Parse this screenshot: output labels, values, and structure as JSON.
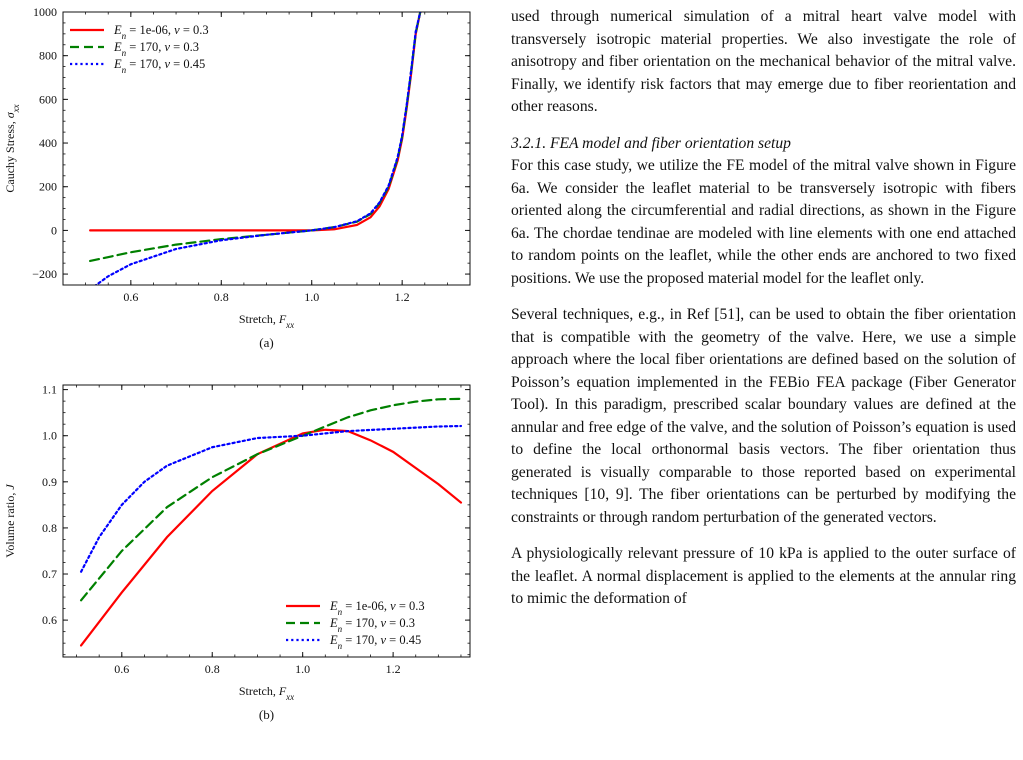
{
  "colors": {
    "series_red": "#ff0000",
    "series_green": "#008000",
    "series_blue": "#0000ff"
  },
  "chart_data": [
    {
      "type": "line",
      "panel": "(a)",
      "xlabel_text": "Stretch, ",
      "xlabel_sym": "F",
      "xlabel_sub": "xx",
      "ylabel_text": "Cauchy Stress, ",
      "ylabel_sym": "σ",
      "ylabel_sub": "xx",
      "xlim": [
        0.45,
        1.35
      ],
      "ylim": [
        -250,
        1000
      ],
      "xticks": [
        "0.6",
        "0.8",
        "1.0",
        "1.2"
      ],
      "xtick_values": [
        0.6,
        0.8,
        1.0,
        1.2
      ],
      "yticks": [
        "−200",
        "0",
        "200",
        "400",
        "600",
        "800",
        "1000"
      ],
      "ytick_values": [
        -200,
        0,
        200,
        400,
        600,
        800,
        1000
      ],
      "legend_position": "top-left",
      "grid": false,
      "series": [
        {
          "name_html": "<tspan font-style='italic'>E</tspan><tspan font-style='italic' baseline-shift='sub' font-size='9'>n</tspan> = 1e-06, <tspan font-style='italic'>ν</tspan> = 0.3",
          "color": "#ff0000",
          "dash": "solid",
          "x": [
            0.51,
            0.6,
            0.7,
            0.8,
            0.9,
            0.95,
            1.0,
            1.05,
            1.1,
            1.13,
            1.15,
            1.17,
            1.19,
            1.2,
            1.21,
            1.22,
            1.23,
            1.24
          ],
          "y": [
            0,
            0,
            0,
            0,
            0,
            0,
            0,
            5,
            25,
            60,
            110,
            190,
            320,
            420,
            560,
            720,
            900,
            1000
          ]
        },
        {
          "name_html": "<tspan font-style='italic'>E</tspan><tspan font-style='italic' baseline-shift='sub' font-size='9'>n</tspan> = 170, <tspan font-style='italic'>ν</tspan> = 0.3",
          "color": "#008000",
          "dash": "dashed",
          "x": [
            0.51,
            0.6,
            0.7,
            0.8,
            0.9,
            0.95,
            1.0,
            1.05,
            1.1,
            1.13,
            1.15,
            1.17,
            1.19,
            1.2,
            1.21,
            1.22,
            1.23,
            1.24
          ],
          "y": [
            -140,
            -100,
            -65,
            -40,
            -20,
            -10,
            0,
            15,
            40,
            75,
            125,
            200,
            330,
            430,
            570,
            730,
            905,
            1000
          ]
        },
        {
          "name_html": "<tspan font-style='italic'>E</tspan><tspan font-style='italic' baseline-shift='sub' font-size='9'>n</tspan> = 170, <tspan font-style='italic'>ν</tspan> = 0.45",
          "color": "#0000ff",
          "dash": "dotted",
          "x": [
            0.51,
            0.55,
            0.6,
            0.7,
            0.8,
            0.9,
            0.95,
            1.0,
            1.05,
            1.1,
            1.13,
            1.15,
            1.17,
            1.19,
            1.2,
            1.21,
            1.22,
            1.23,
            1.24
          ],
          "y": [
            -270,
            -210,
            -155,
            -85,
            -45,
            -20,
            -10,
            0,
            15,
            42,
            78,
            128,
            205,
            335,
            435,
            575,
            735,
            910,
            1000
          ]
        }
      ]
    },
    {
      "type": "line",
      "panel": "(b)",
      "xlabel_text": "Stretch, ",
      "xlabel_sym": "F",
      "xlabel_sub": "xx",
      "ylabel_text": "Volume ratio, ",
      "ylabel_sym": "J",
      "ylabel_sub": "",
      "xlim": [
        0.47,
        1.37
      ],
      "ylim": [
        0.52,
        1.11
      ],
      "xticks": [
        "0.6",
        "0.8",
        "1.0",
        "1.2"
      ],
      "xtick_values": [
        0.6,
        0.8,
        1.0,
        1.2
      ],
      "yticks": [
        "0.6",
        "0.7",
        "0.8",
        "0.9",
        "1.0",
        "1.1"
      ],
      "ytick_values": [
        0.6,
        0.7,
        0.8,
        0.9,
        1.0,
        1.1
      ],
      "legend_position": "bottom-right",
      "grid": false,
      "series": [
        {
          "name_html": "<tspan font-style='italic'>E</tspan><tspan font-style='italic' baseline-shift='sub' font-size='9'>n</tspan> = 1e-06, <tspan font-style='italic'>ν</tspan> = 0.3",
          "color": "#ff0000",
          "dash": "solid",
          "x": [
            0.51,
            0.6,
            0.7,
            0.8,
            0.9,
            1.0,
            1.05,
            1.1,
            1.15,
            1.2,
            1.25,
            1.3,
            1.35
          ],
          "y": [
            0.545,
            0.66,
            0.78,
            0.88,
            0.96,
            1.005,
            1.013,
            1.01,
            0.99,
            0.965,
            0.93,
            0.895,
            0.855
          ]
        },
        {
          "name_html": "<tspan font-style='italic'>E</tspan><tspan font-style='italic' baseline-shift='sub' font-size='9'>n</tspan> = 170, <tspan font-style='italic'>ν</tspan> = 0.3",
          "color": "#008000",
          "dash": "dashed",
          "x": [
            0.51,
            0.6,
            0.7,
            0.8,
            0.9,
            1.0,
            1.05,
            1.1,
            1.15,
            1.2,
            1.25,
            1.3,
            1.35
          ],
          "y": [
            0.643,
            0.75,
            0.845,
            0.91,
            0.96,
            1.0,
            1.02,
            1.04,
            1.055,
            1.066,
            1.074,
            1.079,
            1.08
          ]
        },
        {
          "name_html": "<tspan font-style='italic'>E</tspan><tspan font-style='italic' baseline-shift='sub' font-size='9'>n</tspan> = 170, <tspan font-style='italic'>ν</tspan> = 0.45",
          "color": "#0000ff",
          "dash": "dotted",
          "x": [
            0.51,
            0.55,
            0.6,
            0.65,
            0.7,
            0.8,
            0.9,
            1.0,
            1.1,
            1.2,
            1.3,
            1.35
          ],
          "y": [
            0.705,
            0.78,
            0.85,
            0.9,
            0.935,
            0.975,
            0.995,
            1.0,
            1.01,
            1.015,
            1.02,
            1.021
          ]
        }
      ]
    }
  ],
  "text": {
    "para1": "used through numerical simulation of a mitral heart valve model with transversely isotropic material properties. We also investigate the role of anisotropy and fiber orientation on the mechanical behavior of the mitral valve. Finally, we identify risk factors that may emerge due to fiber reorientation and other reasons.",
    "heading": "3.2.1.  FEA model and fiber orientation setup",
    "para2": "For this case study, we utilize the FE model of the mitral valve shown in Figure 6a. We consider the leaflet material to be transversely isotropic with fibers oriented along the circumferential and radial directions, as shown in the Figure 6a. The chordae tendinae are modeled with line elements with one end attached to random points on the leaflet, while the other ends are anchored to two fixed positions. We use the proposed material model for the leaflet only.",
    "para3": "Several techniques, e.g., in Ref [51], can be used to obtain the fiber orientation that is compatible with the geometry of the valve. Here, we use a simple approach where the local fiber orientations are defined based on the solution of Poisson’s equation implemented in the FEBio FEA package (Fiber Generator Tool). In this paradigm, prescribed scalar boundary values are defined at the annular and free edge of the valve, and the solution of Poisson’s equation is used to define the local orthonormal basis vectors. The fiber orientation thus generated is visually comparable to those reported based on experimental techniques [10, 9]. The fiber orientations can be perturbed by modifying the constraints or through random perturbation of the generated vectors.",
    "para4": "A physiologically relevant pressure of 10 kPa is applied to the outer surface of the leaflet. A normal displacement is applied to the elements at the annular ring to mimic the deformation of"
  }
}
